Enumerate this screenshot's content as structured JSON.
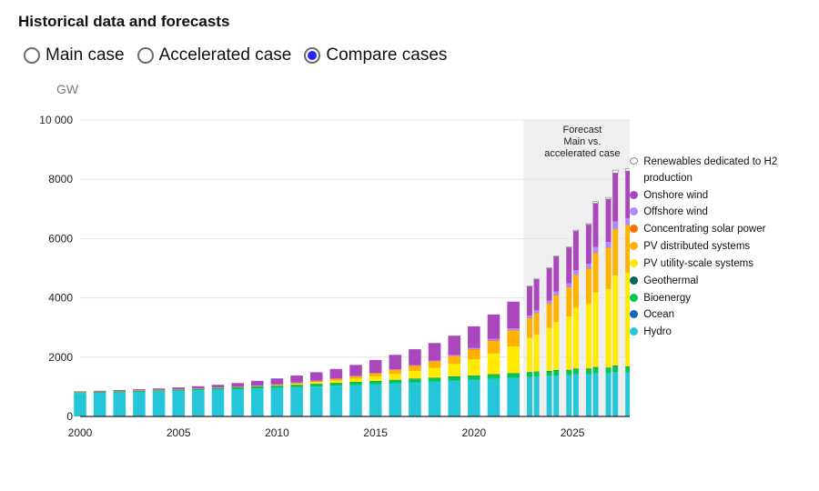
{
  "title": "Historical data and forecasts",
  "radios": {
    "options": [
      {
        "id": "main",
        "label": "Main case"
      },
      {
        "id": "accel",
        "label": "Accelerated case"
      },
      {
        "id": "compare",
        "label": "Compare cases"
      }
    ],
    "selected": "compare"
  },
  "y_unit": "GW",
  "chart": {
    "type": "stacked-bar",
    "background_color": "#ffffff",
    "forecast_band": {
      "start_year": 2023,
      "end_year": 2028,
      "fill": "#efefef",
      "label_lines": [
        "Forecast",
        "Main vs.",
        "accelerated case"
      ],
      "label_fontsize": 11
    },
    "x": {
      "years": [
        2000,
        2001,
        2002,
        2003,
        2004,
        2005,
        2006,
        2007,
        2008,
        2009,
        2010,
        2011,
        2012,
        2013,
        2014,
        2015,
        2016,
        2017,
        2018,
        2019,
        2020,
        2021,
        2022,
        2023,
        2024,
        2025,
        2026,
        2027,
        2028
      ],
      "tick_years": [
        2000,
        2005,
        2010,
        2015,
        2020,
        2025
      ],
      "fontsize": 12
    },
    "y": {
      "lim": [
        0,
        10000
      ],
      "ticks": [
        0,
        2000,
        4000,
        6000,
        8000,
        10000
      ],
      "tick_labels": [
        "0",
        "2000",
        "4000",
        "6000",
        "8000",
        "10 000"
      ],
      "fontsize": 12,
      "grid_color": "#e4e4e4",
      "baseline_color": "#222222"
    },
    "bar_gap_ratio": 0.35,
    "forecast_pair_inner_gap": 0.08,
    "series_order_bottom_to_top": [
      "hydro",
      "ocean",
      "bioenergy",
      "geothermal",
      "pv_utility",
      "pv_distributed",
      "csp",
      "offshore_wind",
      "onshore_wind",
      "h2"
    ],
    "series_meta": {
      "hydro": {
        "label": "Hydro",
        "color": "#26c6da"
      },
      "ocean": {
        "label": "Ocean",
        "color": "#1565c0"
      },
      "bioenergy": {
        "label": "Bioenergy",
        "color": "#00c853"
      },
      "geothermal": {
        "label": "Geothermal",
        "color": "#00695c"
      },
      "pv_utility": {
        "label": "PV utility-scale systems",
        "color": "#ffea00"
      },
      "pv_distributed": {
        "label": "PV distributed systems",
        "color": "#ffb300"
      },
      "csp": {
        "label": "Concentrating solar power",
        "color": "#ff6f00"
      },
      "offshore_wind": {
        "label": "Offshore wind",
        "color": "#b388ff"
      },
      "onshore_wind": {
        "label": "Onshore wind",
        "color": "#ab47bc"
      },
      "h2": {
        "label": "Renewables dedicated to H2 production",
        "color": "#ffffff",
        "border": "#888888"
      }
    },
    "legend_order_top_to_bottom": [
      "h2",
      "onshore_wind",
      "offshore_wind",
      "csp",
      "pv_distributed",
      "pv_utility",
      "geothermal",
      "bioenergy",
      "ocean",
      "hydro"
    ],
    "legend_fontsize": 11.5,
    "data_main": {
      "hydro": [
        790,
        800,
        815,
        830,
        845,
        860,
        880,
        900,
        920,
        940,
        960,
        985,
        1010,
        1035,
        1060,
        1090,
        1120,
        1150,
        1180,
        1210,
        1240,
        1270,
        1300,
        1330,
        1360,
        1390,
        1420,
        1450,
        1480
      ],
      "ocean": [
        0,
        0,
        0,
        0,
        0,
        0,
        0,
        0,
        0,
        0,
        0,
        0,
        0,
        0,
        0,
        0,
        0,
        0,
        0,
        0,
        0,
        0,
        0,
        0,
        0,
        0,
        0,
        0,
        0
      ],
      "bioenergy": [
        30,
        32,
        34,
        36,
        38,
        42,
        46,
        50,
        55,
        60,
        66,
        72,
        78,
        84,
        90,
        96,
        103,
        110,
        117,
        124,
        131,
        138,
        145,
        152,
        159,
        166,
        173,
        180,
        187
      ],
      "geothermal": [
        8,
        8,
        9,
        9,
        9,
        9,
        10,
        10,
        10,
        11,
        11,
        12,
        12,
        12,
        13,
        13,
        13,
        14,
        14,
        15,
        15,
        16,
        16,
        17,
        17,
        18,
        18,
        19,
        19
      ],
      "pv_utility": [
        0,
        0,
        0,
        1,
        1,
        2,
        3,
        5,
        8,
        13,
        21,
        35,
        55,
        80,
        110,
        150,
        200,
        260,
        330,
        420,
        540,
        700,
        900,
        1150,
        1450,
        1800,
        2200,
        2650,
        3150
      ],
      "pv_distributed": [
        1,
        1,
        2,
        2,
        3,
        4,
        5,
        7,
        10,
        15,
        22,
        32,
        45,
        62,
        82,
        105,
        135,
        170,
        215,
        270,
        340,
        430,
        540,
        670,
        820,
        990,
        1180,
        1390,
        1620
      ],
      "csp": [
        0,
        0,
        0,
        0,
        0,
        0,
        0,
        0,
        1,
        1,
        1,
        2,
        3,
        4,
        5,
        5,
        5,
        5,
        6,
        6,
        6,
        6,
        7,
        7,
        8,
        8,
        9,
        9,
        10
      ],
      "offshore_wind": [
        0,
        0,
        0,
        0,
        0,
        1,
        1,
        1,
        1,
        2,
        3,
        4,
        5,
        7,
        8,
        12,
        14,
        19,
        23,
        29,
        35,
        56,
        64,
        75,
        95,
        120,
        150,
        185,
        225
      ],
      "onshore_wind": [
        17,
        24,
        31,
        39,
        47,
        59,
        74,
        94,
        121,
        159,
        198,
        238,
        283,
        318,
        370,
        433,
        487,
        540,
        591,
        650,
        733,
        824,
        900,
        990,
        1090,
        1200,
        1320,
        1450,
        1590
      ],
      "h2": [
        0,
        0,
        0,
        0,
        0,
        0,
        0,
        0,
        0,
        0,
        0,
        0,
        0,
        0,
        0,
        0,
        0,
        0,
        0,
        0,
        0,
        0,
        0,
        5,
        10,
        20,
        35,
        55,
        80
      ]
    },
    "data_accel_forecast": {
      "years": [
        2023,
        2024,
        2025,
        2026,
        2027,
        2028
      ],
      "hydro": [
        1340,
        1380,
        1420,
        1460,
        1500,
        1540
      ],
      "ocean": [
        0,
        0,
        0,
        0,
        0,
        0
      ],
      "bioenergy": [
        158,
        168,
        178,
        188,
        198,
        208
      ],
      "geothermal": [
        17,
        18,
        19,
        20,
        21,
        22
      ],
      "pv_utility": [
        1250,
        1620,
        2050,
        2520,
        3040,
        3600
      ],
      "pv_distributed": [
        720,
        900,
        1100,
        1320,
        1560,
        1820
      ],
      "csp": [
        8,
        9,
        10,
        11,
        12,
        13
      ],
      "offshore_wind": [
        85,
        115,
        155,
        200,
        250,
        310
      ],
      "onshore_wind": [
        1050,
        1180,
        1320,
        1470,
        1630,
        1800
      ],
      "h2": [
        8,
        18,
        35,
        60,
        95,
        140
      ]
    }
  }
}
